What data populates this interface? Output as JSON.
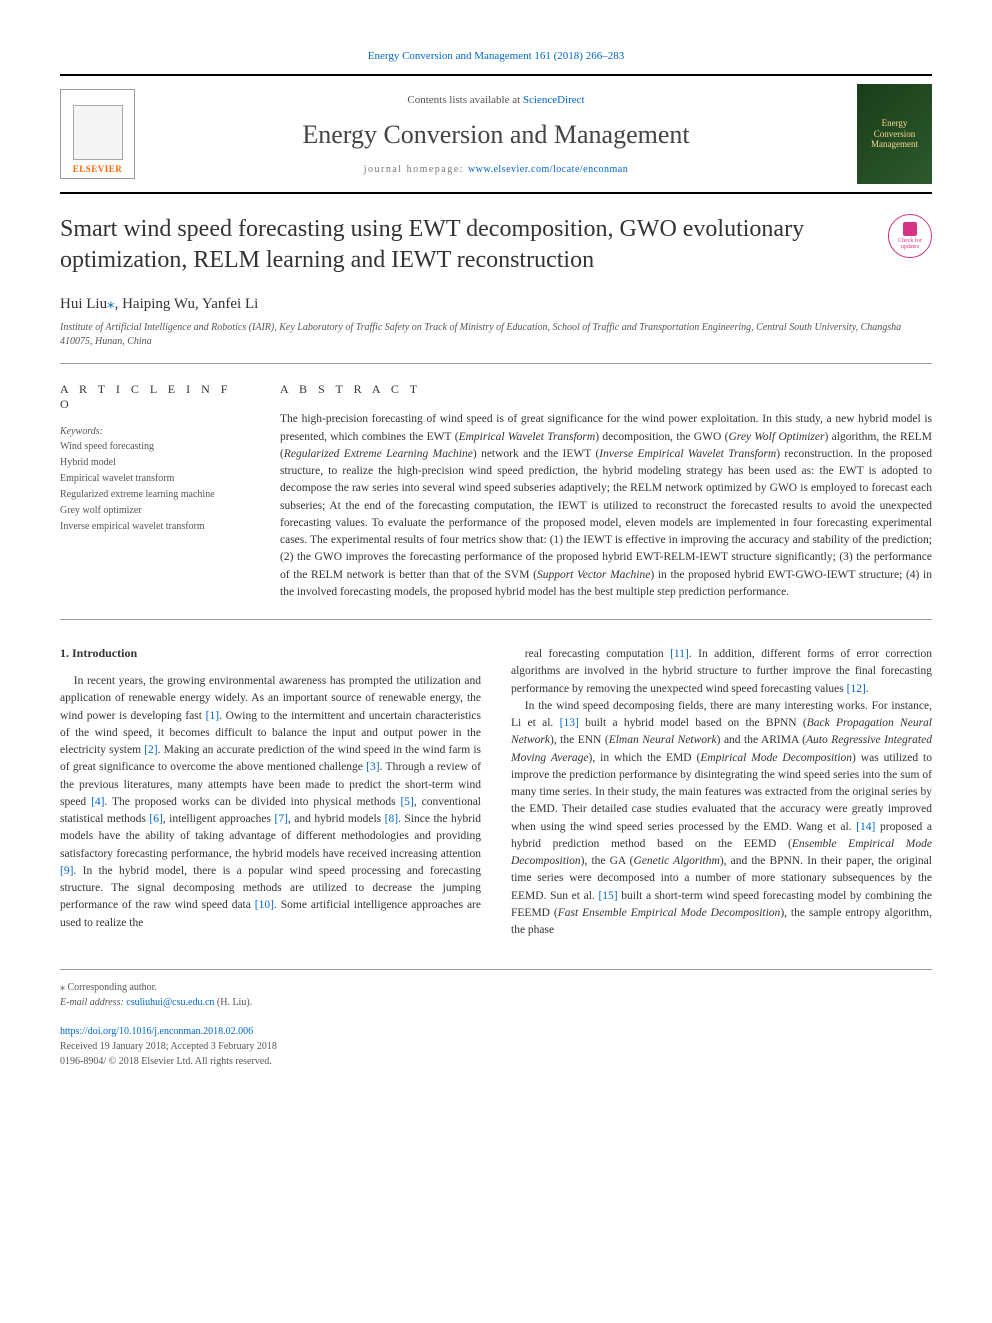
{
  "header": {
    "citation": "Energy Conversion and Management 161 (2018) 266–283",
    "contents_prefix": "Contents lists available at ",
    "contents_link": "ScienceDirect",
    "journal_name": "Energy Conversion and Management",
    "homepage_prefix": "journal homepage: ",
    "homepage_url": "www.elsevier.com/locate/enconman",
    "publisher": "ELSEVIER",
    "cover_text": "Energy Conversion Management"
  },
  "badge": {
    "line1": "Check for",
    "line2": "updates"
  },
  "title": "Smart wind speed forecasting using EWT decomposition, GWO evolutionary optimization, RELM learning and IEWT reconstruction",
  "authors": "Hui Liu",
  "authors_mark": "⁎",
  "authors_rest": ", Haiping Wu, Yanfei Li",
  "affiliation": "Institute of Artificial Intelligence and Robotics (IAIR), Key Laboratory of Traffic Safety on Track of Ministry of Education, School of Traffic and Transportation Engineering, Central South University, Changsha 410075, Hunan, China",
  "article_info": {
    "heading": "A R T I C L E   I N F O",
    "keywords_label": "Keywords:",
    "keywords": [
      "Wind speed forecasting",
      "Hybrid model",
      "Empirical wavelet transform",
      "Regularized extreme learning machine",
      "Grey wolf optimizer",
      "Inverse empirical wavelet transform"
    ]
  },
  "abstract": {
    "heading": "A B S T R A C T",
    "text": "The high-precision forecasting of wind speed is of great significance for the wind power exploitation. In this study, a new hybrid model is presented, which combines the EWT (Empirical Wavelet Transform) decomposition, the GWO (Grey Wolf Optimizer) algorithm, the RELM (Regularized Extreme Learning Machine) network and the IEWT (Inverse Empirical Wavelet Transform) reconstruction. In the proposed structure, to realize the high-precision wind speed prediction, the hybrid modeling strategy has been used as: the EWT is adopted to decompose the raw series into several wind speed subseries adaptively; the RELM network optimized by GWO is employed to forecast each subseries; At the end of the forecasting computation, the IEWT is utilized to reconstruct the forecasted results to avoid the unexpected forecasting values. To evaluate the performance of the proposed model, eleven models are implemented in four forecasting experimental cases. The experimental results of four metrics show that: (1) the IEWT is effective in improving the accuracy and stability of the prediction; (2) the GWO improves the forecasting performance of the proposed hybrid EWT-RELM-IEWT structure significantly; (3) the performance of the RELM network is better than that of the SVM (Support Vector Machine) in the proposed hybrid EWT-GWO-IEWT structure; (4) in the involved forecasting models, the proposed hybrid model has the best multiple step prediction performance."
  },
  "intro": {
    "heading": "1. Introduction",
    "col1": "In recent years, the growing environmental awareness has prompted the utilization and application of renewable energy widely. As an important source of renewable energy, the wind power is developing fast [1]. Owing to the intermittent and uncertain characteristics of the wind speed, it becomes difficult to balance the input and output power in the electricity system [2]. Making an accurate prediction of the wind speed in the wind farm is of great significance to overcome the above mentioned challenge [3]. Through a review of the previous literatures, many attempts have been made to predict the short-term wind speed [4]. The proposed works can be divided into physical methods [5], conventional statistical methods [6], intelligent approaches [7], and hybrid models [8]. Since the hybrid models have the ability of taking advantage of different methodologies and providing satisfactory forecasting performance, the hybrid models have received increasing attention [9]. In the hybrid model, there is a popular wind speed processing and forecasting structure. The signal decomposing methods are utilized to decrease the jumping performance of the raw wind speed data [10]. Some artificial intelligence approaches are used to realize the",
    "col2": "real forecasting computation [11]. In addition, different forms of error correction algorithms are involved in the hybrid structure to further improve the final forecasting performance by removing the unexpected wind speed forecasting values [12].\nIn the wind speed decomposing fields, there are many interesting works. For instance, Li et al. [13] built a hybrid model based on the BPNN (Back Propagation Neural Network), the ENN (Elman Neural Network) and the ARIMA (Auto Regressive Integrated Moving Average), in which the EMD (Empirical Mode Decomposition) was utilized to improve the prediction performance by disintegrating the wind speed series into the sum of many time series. In their study, the main features was extracted from the original series by the EMD. Their detailed case studies evaluated that the accuracy were greatly improved when using the wind speed series processed by the EMD. Wang et al. [14] proposed a hybrid prediction method based on the EEMD (Ensemble Empirical Mode Decomposition), the GA (Genetic Algorithm), and the BPNN. In their paper, the original time series were decomposed into a number of more stationary subsequences by the EEMD. Sun et al. [15] built a short-term wind speed forecasting model by combining the FEEMD (Fast Ensemble Empirical Mode Decomposition), the sample entropy algorithm, the phase"
  },
  "footer": {
    "corr_label": "⁎ Corresponding author.",
    "email_label": "E-mail address: ",
    "email": "csuliuhui@csu.edu.cn",
    "email_author": " (H. Liu).",
    "doi": "https://doi.org/10.1016/j.enconman.2018.02.006",
    "received": "Received 19 January 2018; Accepted 3 February 2018",
    "copyright": "0196-8904/ © 2018 Elsevier Ltd. All rights reserved."
  },
  "refs": [
    "[1]",
    "[2]",
    "[3]",
    "[4]",
    "[5]",
    "[6]",
    "[7]",
    "[8]",
    "[9]",
    "[10]",
    "[11]",
    "[12]",
    "[13]",
    "[14]",
    "[15]"
  ],
  "colors": {
    "link": "#0066cc",
    "publisher": "#ff6600",
    "badge": "#d63384",
    "text": "#333333",
    "muted": "#555555",
    "rule": "#999999",
    "cover_bg_from": "#1a3d1a",
    "cover_bg_to": "#2d5a2d",
    "cover_text": "#f5d890"
  }
}
